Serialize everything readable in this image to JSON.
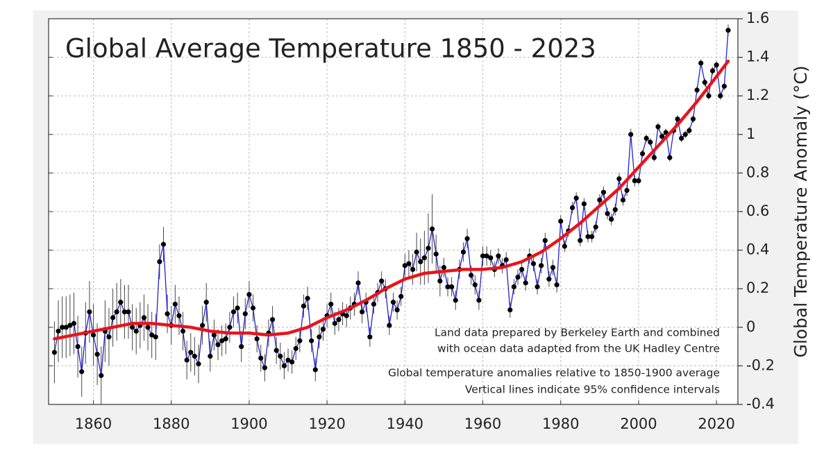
{
  "chart_data": {
    "type": "line",
    "title": "Global Average Temperature 1850 - 2023",
    "y_label": "Global Temperature Anomaly (°C)",
    "annotations": [
      "Land data prepared by Berkeley Earth and combined",
      "with ocean data adapted from the UK Hadley Centre",
      "Global temperature anomalies relative to 1850-1900 average",
      "Vertical lines indicate 95% confidence intervals"
    ],
    "xlim": [
      1848.5,
      2025.5
    ],
    "xticks": [
      1860,
      1880,
      1900,
      1920,
      1940,
      1960,
      1980,
      2000,
      2020
    ],
    "ylim": [
      -0.4,
      1.6
    ],
    "yticks": [
      1.6,
      1.4,
      1.2,
      1,
      0.8,
      0.6,
      0.4,
      0.2,
      0,
      -0.2,
      -0.4
    ],
    "grid": true,
    "series": [
      {
        "color": "#2222cc",
        "x": [
          1850,
          1851,
          1852,
          1853,
          1854,
          1855,
          1856,
          1857,
          1858,
          1859,
          1860,
          1861,
          1862,
          1863,
          1864,
          1865,
          1866,
          1867,
          1868,
          1869,
          1870,
          1871,
          1872,
          1873,
          1874,
          1875,
          1876,
          1877,
          1878,
          1879,
          1880,
          1881,
          1882,
          1883,
          1884,
          1885,
          1886,
          1887,
          1888,
          1889,
          1890,
          1891,
          1892,
          1893,
          1894,
          1895,
          1896,
          1897,
          1898,
          1899,
          1900,
          1901,
          1902,
          1903,
          1904,
          1905,
          1906,
          1907,
          1908,
          1909,
          1910,
          1911,
          1912,
          1913,
          1914,
          1915,
          1916,
          1917,
          1918,
          1919,
          1920,
          1921,
          1922,
          1923,
          1924,
          1925,
          1926,
          1927,
          1928,
          1929,
          1930,
          1931,
          1932,
          1933,
          1934,
          1935,
          1936,
          1937,
          1938,
          1939,
          1940,
          1941,
          1942,
          1943,
          1944,
          1945,
          1946,
          1947,
          1948,
          1949,
          1950,
          1951,
          1952,
          1953,
          1954,
          1955,
          1956,
          1957,
          1958,
          1959,
          1960,
          1961,
          1962,
          1963,
          1964,
          1965,
          1966,
          1967,
          1968,
          1969,
          1970,
          1971,
          1972,
          1973,
          1974,
          1975,
          1976,
          1977,
          1978,
          1979,
          1980,
          1981,
          1982,
          1983,
          1984,
          1985,
          1986,
          1987,
          1988,
          1989,
          1990,
          1991,
          1992,
          1993,
          1994,
          1995,
          1996,
          1997,
          1998,
          1999,
          2000,
          2001,
          2002,
          2003,
          2004,
          2005,
          2006,
          2007,
          2008,
          2009,
          2010,
          2011,
          2012,
          2013,
          2014,
          2015,
          2016,
          2017,
          2018,
          2019,
          2020,
          2021,
          2022,
          2023
        ],
        "values": [
          -0.13,
          -0.02,
          0.0,
          0.0,
          0.01,
          0.02,
          -0.1,
          -0.23,
          -0.03,
          0.08,
          -0.04,
          -0.14,
          -0.25,
          -0.02,
          -0.05,
          0.05,
          0.08,
          0.13,
          0.08,
          0.08,
          0.0,
          -0.02,
          0.01,
          0.05,
          0.0,
          -0.04,
          -0.05,
          0.34,
          0.43,
          0.07,
          0.01,
          0.12,
          0.06,
          -0.02,
          -0.17,
          -0.13,
          -0.15,
          -0.19,
          0.01,
          0.13,
          -0.15,
          -0.04,
          -0.09,
          -0.07,
          -0.06,
          0.0,
          0.08,
          0.1,
          -0.1,
          0.07,
          0.17,
          0.1,
          -0.06,
          -0.16,
          -0.21,
          -0.03,
          0.04,
          -0.12,
          -0.15,
          -0.2,
          -0.17,
          -0.18,
          -0.11,
          -0.07,
          0.11,
          0.15,
          -0.07,
          -0.22,
          -0.05,
          -0.01,
          0.06,
          0.12,
          0.02,
          0.04,
          0.07,
          0.06,
          0.1,
          0.12,
          0.23,
          0.08,
          0.13,
          -0.05,
          0.12,
          0.18,
          0.24,
          0.2,
          0.01,
          0.13,
          0.09,
          0.16,
          0.32,
          0.33,
          0.3,
          0.39,
          0.34,
          0.36,
          0.41,
          0.51,
          0.38,
          0.24,
          0.31,
          0.21,
          0.21,
          0.14,
          0.3,
          0.39,
          0.46,
          0.27,
          0.22,
          0.14,
          0.37,
          0.37,
          0.36,
          0.3,
          0.37,
          0.32,
          0.35,
          0.09,
          0.21,
          0.26,
          0.3,
          0.23,
          0.37,
          0.33,
          0.21,
          0.32,
          0.45,
          0.25,
          0.31,
          0.22,
          0.55,
          0.42,
          0.5,
          0.62,
          0.67,
          0.45,
          0.64,
          0.47,
          0.47,
          0.52,
          0.66,
          0.7,
          0.59,
          0.56,
          0.61,
          0.77,
          0.66,
          0.71,
          1.0,
          0.76,
          0.76,
          0.9,
          0.98,
          0.96,
          0.88,
          1.04,
          0.99,
          1.01,
          0.88,
          1.02,
          1.08,
          0.98,
          1.0,
          1.02,
          1.08,
          1.23,
          1.37,
          1.27,
          1.2,
          1.33,
          1.36,
          1.2,
          1.25,
          1.54
        ],
        "errors": [
          0.16,
          0.16,
          0.16,
          0.16,
          0.16,
          0.16,
          0.16,
          0.13,
          0.16,
          0.16,
          0.16,
          0.16,
          0.15,
          0.16,
          0.15,
          0.15,
          0.15,
          0.12,
          0.14,
          0.14,
          0.12,
          0.12,
          0.12,
          0.12,
          0.12,
          0.12,
          0.12,
          0.09,
          0.09,
          0.1,
          0.1,
          0.1,
          0.1,
          0.1,
          0.1,
          0.1,
          0.1,
          0.1,
          0.1,
          0.1,
          0.08,
          0.08,
          0.08,
          0.08,
          0.08,
          0.08,
          0.08,
          0.08,
          0.08,
          0.08,
          0.07,
          0.07,
          0.07,
          0.07,
          0.07,
          0.07,
          0.07,
          0.07,
          0.07,
          0.07,
          0.06,
          0.06,
          0.06,
          0.06,
          0.06,
          0.06,
          0.06,
          0.06,
          0.06,
          0.06,
          0.06,
          0.06,
          0.06,
          0.06,
          0.06,
          0.06,
          0.06,
          0.06,
          0.06,
          0.06,
          0.05,
          0.05,
          0.05,
          0.05,
          0.05,
          0.05,
          0.05,
          0.05,
          0.05,
          0.05,
          0.06,
          0.07,
          0.08,
          0.1,
          0.12,
          0.14,
          0.18,
          0.18,
          0.1,
          0.08,
          0.05,
          0.05,
          0.05,
          0.05,
          0.05,
          0.05,
          0.05,
          0.05,
          0.05,
          0.05,
          0.05,
          0.05,
          0.04,
          0.04,
          0.04,
          0.04,
          0.04,
          0.04,
          0.04,
          0.04,
          0.04,
          0.04,
          0.04,
          0.04,
          0.04,
          0.04,
          0.04,
          0.04,
          0.04,
          0.04,
          0.03,
          0.03,
          0.03,
          0.03,
          0.03,
          0.03,
          0.03,
          0.03,
          0.03,
          0.03,
          0.03,
          0.03,
          0.03,
          0.03,
          0.03,
          0.03,
          0.03,
          0.03,
          0.03,
          0.03,
          0.02,
          0.02,
          0.02,
          0.02,
          0.02,
          0.02,
          0.02,
          0.02,
          0.02,
          0.02,
          0.02,
          0.02,
          0.02,
          0.02,
          0.02,
          0.02,
          0.02,
          0.02,
          0.02,
          0.02,
          0.02,
          0.02,
          0.02,
          0.03
        ]
      },
      {
        "color": "#e8141b",
        "x": [
          1850,
          1855,
          1860,
          1865,
          1870,
          1875,
          1880,
          1885,
          1890,
          1895,
          1900,
          1905,
          1910,
          1915,
          1920,
          1925,
          1930,
          1935,
          1940,
          1945,
          1950,
          1955,
          1960,
          1965,
          1970,
          1975,
          1980,
          1985,
          1990,
          1995,
          2000,
          2005,
          2010,
          2015,
          2020,
          2023
        ],
        "values": [
          -0.06,
          -0.04,
          -0.02,
          0.0,
          0.02,
          0.02,
          0.01,
          0.0,
          -0.02,
          -0.03,
          -0.03,
          -0.04,
          -0.03,
          0.0,
          0.05,
          0.09,
          0.14,
          0.2,
          0.25,
          0.28,
          0.29,
          0.3,
          0.3,
          0.31,
          0.34,
          0.39,
          0.46,
          0.54,
          0.63,
          0.72,
          0.83,
          0.94,
          1.05,
          1.17,
          1.3,
          1.38
        ]
      }
    ]
  }
}
